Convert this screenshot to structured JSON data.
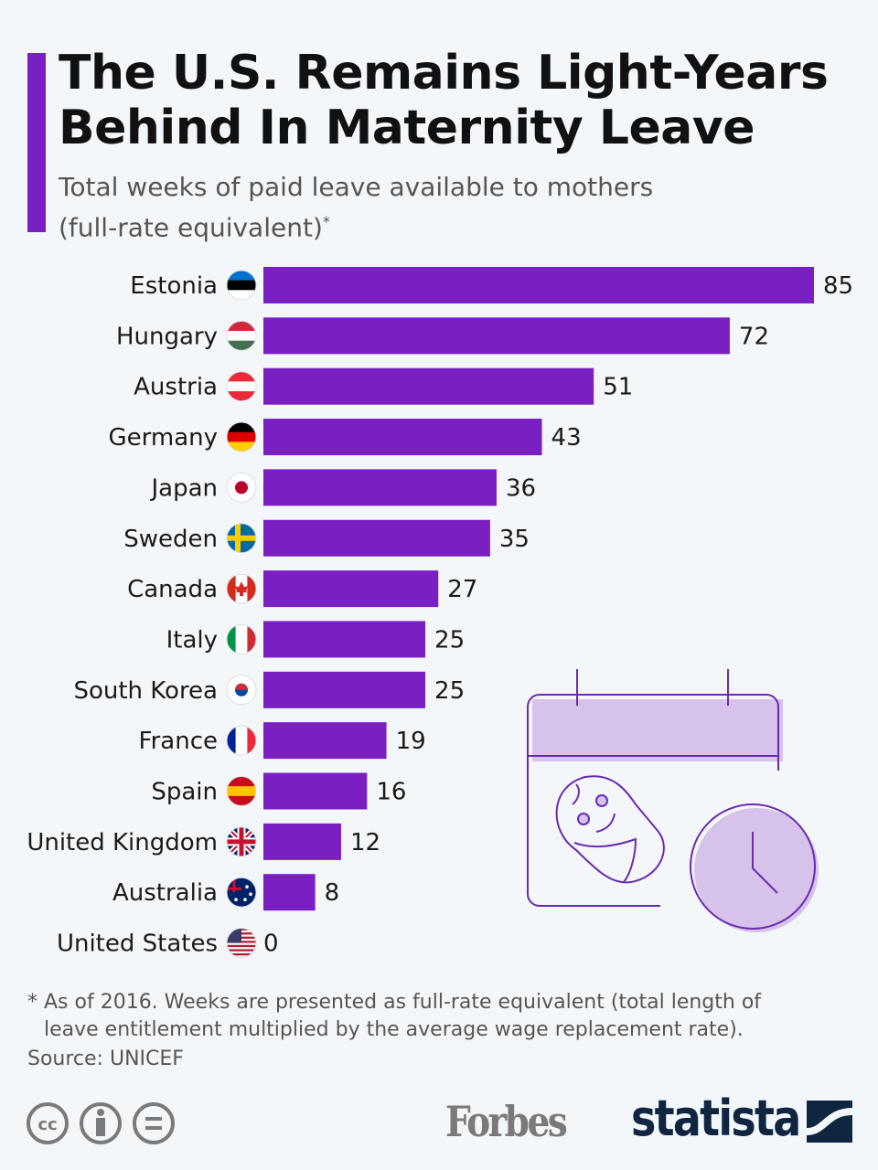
{
  "header": {
    "title_line1": "The U.S. Remains Light-Years",
    "title_line2": "Behind In Maternity Leave",
    "subtitle_line1": "Total weeks of paid leave available to mothers",
    "subtitle_line2": "(full-rate equivalent)",
    "subtitle_mark": "*"
  },
  "chart_data": {
    "type": "bar",
    "orientation": "horizontal",
    "title": "The U.S. Remains Light-Years Behind In Maternity Leave",
    "xlabel": "",
    "ylabel": "Total weeks of paid leave available to mothers (full-rate equivalent)",
    "xlim": [
      0,
      85
    ],
    "bar_color": "#7a1fc2",
    "categories": [
      "Estonia",
      "Hungary",
      "Austria",
      "Germany",
      "Japan",
      "Sweden",
      "Canada",
      "Italy",
      "South Korea",
      "France",
      "Spain",
      "United Kingdom",
      "Australia",
      "United States"
    ],
    "values": [
      85,
      72,
      51,
      43,
      36,
      35,
      27,
      25,
      25,
      19,
      16,
      12,
      8,
      0
    ],
    "flags": [
      "estonia-flag-icon",
      "hungary-flag-icon",
      "austria-flag-icon",
      "germany-flag-icon",
      "japan-flag-icon",
      "sweden-flag-icon",
      "canada-flag-icon",
      "italy-flag-icon",
      "south-korea-flag-icon",
      "france-flag-icon",
      "spain-flag-icon",
      "uk-flag-icon",
      "australia-flag-icon",
      "us-flag-icon"
    ]
  },
  "footer": {
    "note_line1": "* As of 2016. Weeks are presented as full-rate equivalent (total length of",
    "note_line2": "leave entitlement multiplied by the average wage replacement rate).",
    "source": "Source: UNICEF",
    "forbes": "Forbes",
    "statista": "statista"
  },
  "colors": {
    "accent": "#7a1fc2",
    "illustration_fill": "#d6c2ea",
    "illustration_stroke": "#6a2bb0"
  }
}
